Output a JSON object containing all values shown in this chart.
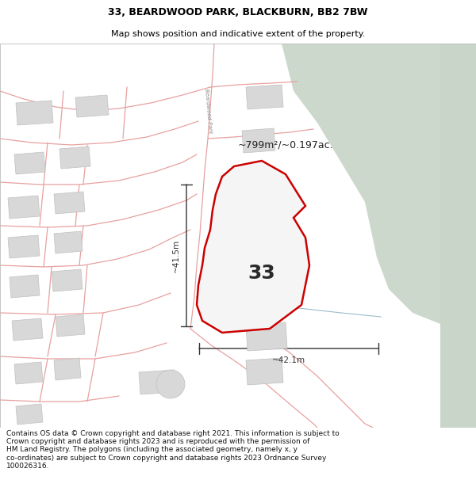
{
  "title_line1": "33, BEARDWOOD PARK, BLACKBURN, BB2 7BW",
  "title_line2": "Map shows position and indicative extent of the property.",
  "footer_text": "Contains OS data © Crown copyright and database right 2021. This information is subject to Crown copyright and database rights 2023 and is reproduced with the permission of HM Land Registry. The polygons (including the associated geometry, namely x, y co-ordinates) are subject to Crown copyright and database rights 2023 Ordnance Survey 100026316.",
  "area_label": "~799m²/~0.197ac.",
  "parcel_number": "33",
  "dim_vertical": "~41.5m",
  "dim_horizontal": "~42.1m",
  "road_label": "Beardwood Park",
  "bg_map_color": "#f0eeee",
  "green_area_color": "#cdd8cd",
  "green_area2_color": "#c8d5c8",
  "red_boundary_color": "#cc0000",
  "parcel_fill": "#f5f5f5",
  "building_fill": "#d8d8d8",
  "building_edge": "#c0c0c0",
  "road_line_color": "#e8a0a0",
  "blue_line_color": "#99bbcc",
  "title_fontsize": 9,
  "subtitle_fontsize": 8,
  "footer_fontsize": 6.5,
  "map_label_fontsize": 9,
  "road_label_fontsize": 5,
  "dim_fontsize": 7.5,
  "parcel_fontsize": 18
}
